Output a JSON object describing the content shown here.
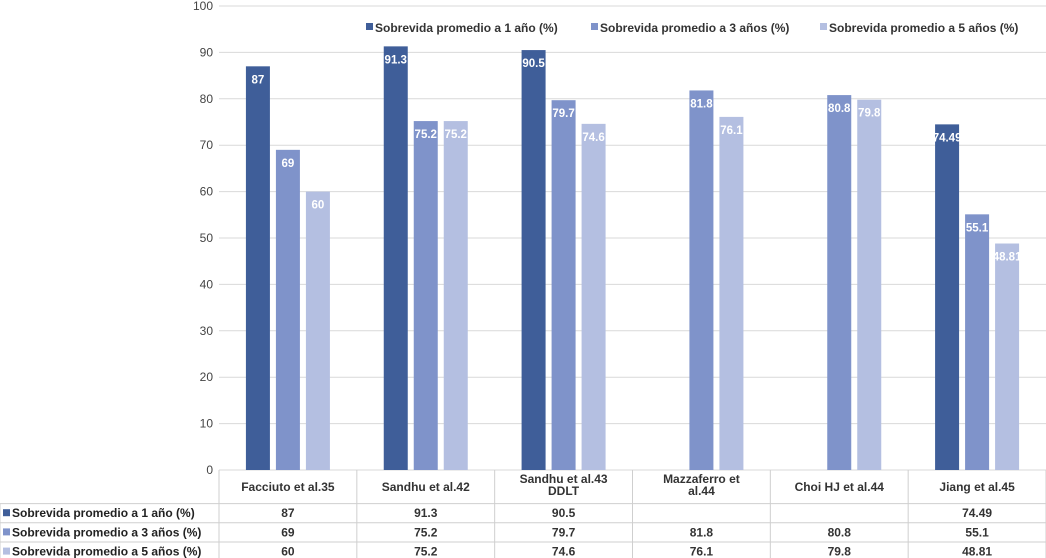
{
  "chart_data": {
    "type": "bar",
    "title": "",
    "xlabel": "",
    "ylabel": "",
    "ylim": [
      0,
      100
    ],
    "yticks": [
      0,
      10,
      20,
      30,
      40,
      50,
      60,
      70,
      80,
      90,
      100
    ],
    "grid": true,
    "legend_position": "top",
    "categories": [
      [
        "Facciuto et al.35"
      ],
      [
        "Sandhu et al.42"
      ],
      [
        "Sandhu et al.43",
        "DDLT"
      ],
      [
        "Mazzaferro et",
        "al.44"
      ],
      [
        "Choi HJ et al.44"
      ],
      [
        "Jiang et al.45"
      ]
    ],
    "series": [
      {
        "name": "Sobrevida promedio a 1 año (%)",
        "color": "#3F5E99",
        "values": [
          87,
          91.3,
          90.5,
          null,
          null,
          74.49
        ],
        "labels": [
          "87",
          "91.3",
          "90.5",
          "",
          "",
          "74.49"
        ]
      },
      {
        "name": "Sobrevida promedio a 3 años (%)",
        "color": "#7F93CA",
        "values": [
          69,
          75.2,
          79.7,
          81.8,
          80.8,
          55.1
        ],
        "labels": [
          "69",
          "75.2",
          "79.7",
          "81.8",
          "80.8",
          "55.1"
        ]
      },
      {
        "name": "Sobrevida promedio a 5 años (%)",
        "color": "#B4BFE1",
        "values": [
          60,
          75.2,
          74.6,
          76.1,
          79.8,
          48.81
        ],
        "labels": [
          "60",
          "75.2",
          "74.6",
          "76.1",
          "79.8",
          "48.81"
        ]
      }
    ],
    "data_table": true
  }
}
